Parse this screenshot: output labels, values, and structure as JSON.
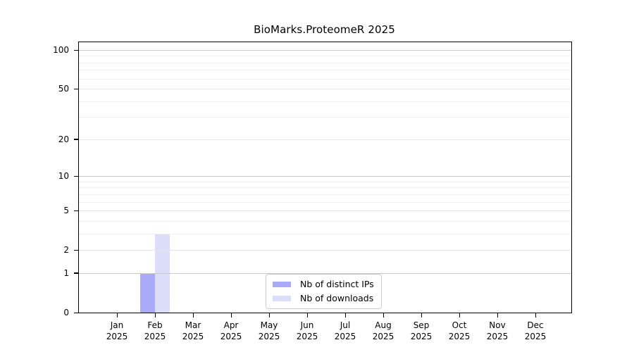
{
  "figure": {
    "title": "BioMarks.ProteomeR 2025"
  },
  "chart_data": {
    "type": "bar",
    "title": "BioMarks.ProteomeR 2025",
    "categories": [
      "Jan 2025",
      "Feb 2025",
      "Mar 2025",
      "Apr 2025",
      "May 2025",
      "Jun 2025",
      "Jul 2025",
      "Aug 2025",
      "Sep 2025",
      "Oct 2025",
      "Nov 2025",
      "Dec 2025"
    ],
    "x_tick_month": [
      "Jan",
      "Feb",
      "Mar",
      "Apr",
      "May",
      "Jun",
      "Jul",
      "Aug",
      "Sep",
      "Oct",
      "Nov",
      "Dec"
    ],
    "x_tick_year": [
      "2025",
      "2025",
      "2025",
      "2025",
      "2025",
      "2025",
      "2025",
      "2025",
      "2025",
      "2025",
      "2025",
      "2025"
    ],
    "series": [
      {
        "name": "Nb of distinct IPs",
        "color": "#aaaaf8",
        "values": [
          0,
          1,
          0,
          0,
          0,
          0,
          0,
          0,
          0,
          0,
          0,
          0
        ]
      },
      {
        "name": "Nb of downloads",
        "color": "#dcdef9",
        "values": [
          0,
          3,
          0,
          0,
          0,
          0,
          0,
          0,
          0,
          0,
          0,
          0
        ]
      }
    ],
    "y_axis": {
      "scale": "log1p",
      "tick_values": [
        0,
        1,
        2,
        5,
        10,
        20,
        50,
        100
      ],
      "tick_labels": [
        "0",
        "1",
        "2",
        "5",
        "10",
        "20",
        "50",
        "100"
      ],
      "minor_gridlines": [
        3,
        4,
        6,
        7,
        8,
        9,
        30,
        40,
        60,
        70,
        80,
        90
      ],
      "ylim": [
        0,
        100
      ]
    },
    "grid": true,
    "legend_position": "bottom-center-inside"
  },
  "colors": {
    "bar_distinct_ips": "#aaaaf8",
    "bar_downloads": "#dcdef9",
    "grid_power10": "#c8c8c8",
    "grid_labeled": "#e4e4e4",
    "grid_minor": "#f0f0f0",
    "axis": "#000000",
    "legend_border": "#cccccc",
    "background": "#ffffff"
  }
}
